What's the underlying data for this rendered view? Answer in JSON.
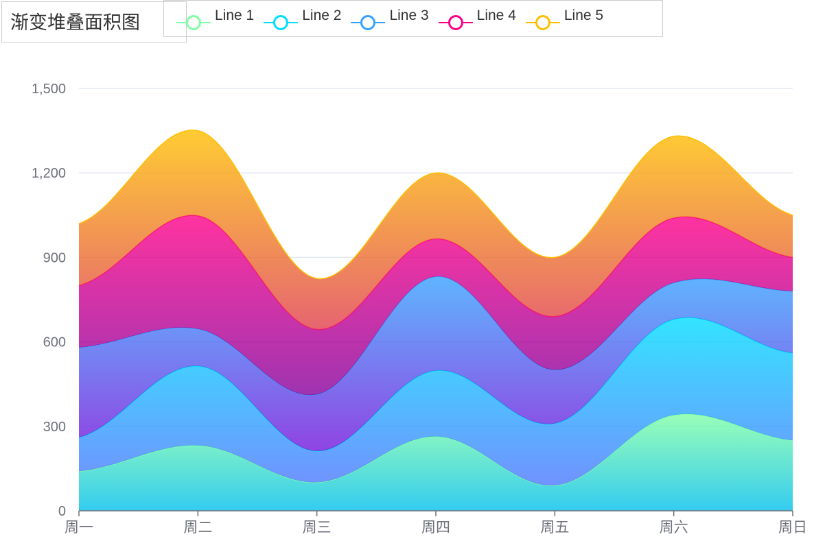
{
  "chart_data": {
    "type": "area",
    "stacked": true,
    "smooth": true,
    "title": "渐变堆叠面积图",
    "categories": [
      "周一",
      "周二",
      "周三",
      "周四",
      "周五",
      "周六",
      "周日"
    ],
    "ylim": [
      0,
      1500
    ],
    "yticks": [
      0,
      300,
      600,
      900,
      1200,
      1500
    ],
    "ytick_labels": [
      "0",
      "300",
      "600",
      "900",
      "1,200",
      "1,500"
    ],
    "legend_position": "top",
    "grid": true,
    "series": [
      {
        "name": "Line 1",
        "color": "#80FFA5",
        "gradient": [
          "#80FFA5",
          "#01BFEC"
        ],
        "values": [
          140,
          232,
          101,
          264,
          90,
          340,
          250
        ]
      },
      {
        "name": "Line 2",
        "color": "#00DDFF",
        "gradient": [
          "#00DDFF",
          "#4D77FF"
        ],
        "values": [
          120,
          282,
          111,
          234,
          220,
          340,
          310
        ]
      },
      {
        "name": "Line 3",
        "color": "#37A2FF",
        "gradient": [
          "#37A2FF",
          "#7415DB"
        ],
        "values": [
          320,
          132,
          201,
          334,
          190,
          130,
          220
        ]
      },
      {
        "name": "Line 4",
        "color": "#FF0087",
        "gradient": [
          "#FF0087",
          "#87009D"
        ],
        "values": [
          220,
          402,
          231,
          134,
          190,
          230,
          120
        ]
      },
      {
        "name": "Line 5",
        "color": "#FFBF00",
        "gradient": [
          "#FFBF00",
          "#E03E4C"
        ],
        "values": [
          220,
          302,
          181,
          234,
          210,
          290,
          150
        ]
      }
    ]
  }
}
